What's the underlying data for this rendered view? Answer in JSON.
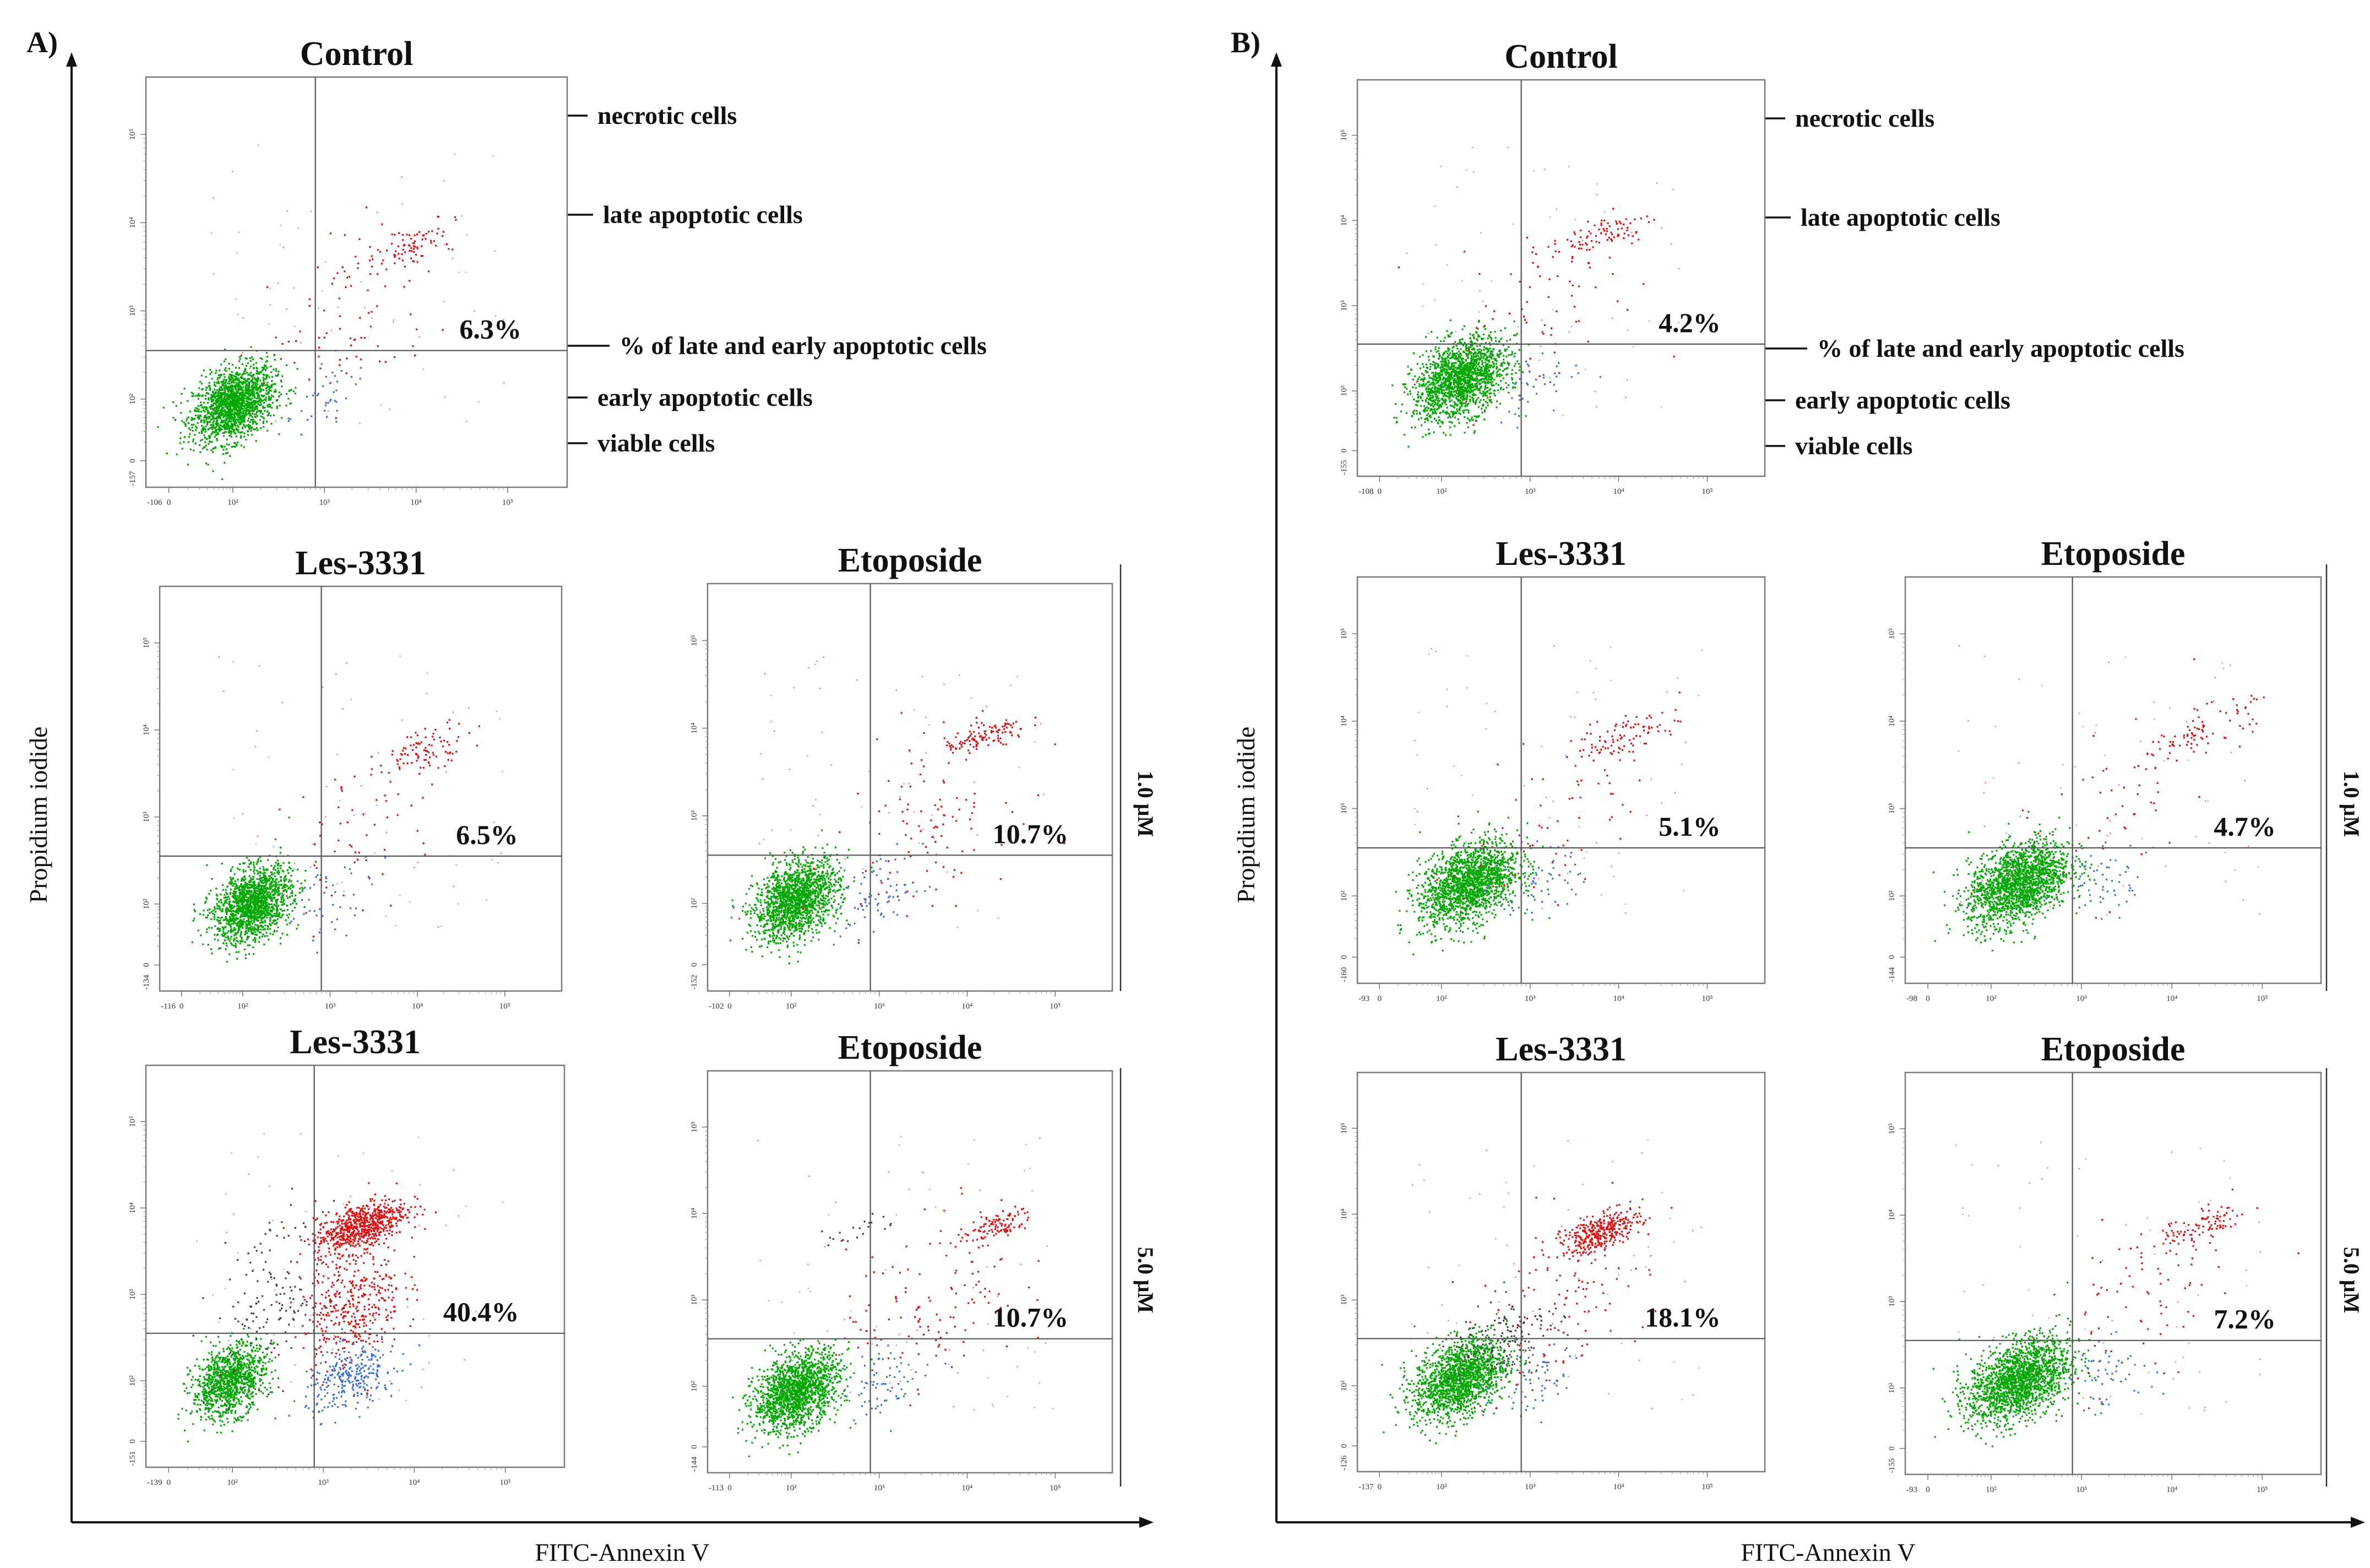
{
  "chart_data": {
    "type": "scatter",
    "xlabel": "FITC-Annexin V",
    "ylabel": "Propidium iodide",
    "colors": {
      "viable": "#00a800",
      "early_apoptotic": "#3b6fe0",
      "late_apoptotic": "#e01010",
      "necrotic": "#404040"
    },
    "panels": [
      {
        "id": "A",
        "letter": "A)",
        "xlabel": "FITC-Annexin V",
        "ylabel": "Propidium iodide",
        "concentrations": [
          "1.0 μM",
          "5.0 μM"
        ],
        "annotations": [
          "necrotic cells",
          "late apoptotic cells",
          "% of late and early apoptotic cells",
          "early apoptotic cells",
          "viable cells"
        ],
        "plots": [
          {
            "name": "control",
            "title": "Control",
            "percent": "6.3%",
            "xmin": "-106",
            "ymin": "-157",
            "xticks": [
              "0",
              "10²",
              "10³",
              "10⁴",
              "10⁵"
            ],
            "yticks": [
              "0",
              "10²",
              "10³",
              "10⁴",
              "10⁵"
            ],
            "clusters": [
              {
                "cls": "viable",
                "x": 1.7,
                "y": 1.65,
                "sx": 0.22,
                "sy": 0.2,
                "n": 1700
              },
              {
                "cls": "late_apoptotic",
                "x": 3.6,
                "y": 3.45,
                "sx": 0.25,
                "sy": 0.12,
                "n": 90
              },
              {
                "cls": "late_apoptotic",
                "x": 3.0,
                "y": 2.6,
                "sx": 0.45,
                "sy": 0.45,
                "n": 70
              },
              {
                "cls": "early_apoptotic",
                "x": 2.7,
                "y": 1.7,
                "sx": 0.25,
                "sy": 0.2,
                "n": 40
              }
            ]
          },
          {
            "name": "les-1",
            "title": "Les-3331",
            "percent": "6.5%",
            "xmin": "-116",
            "ymin": "-134",
            "xticks": [
              "0",
              "10²",
              "10³",
              "10⁴",
              "10⁵"
            ],
            "yticks": [
              "0",
              "10²",
              "10³",
              "10⁴",
              "10⁵"
            ],
            "clusters": [
              {
                "cls": "viable",
                "x": 1.8,
                "y": 1.7,
                "sx": 0.22,
                "sy": 0.2,
                "n": 1600
              },
              {
                "cls": "late_apoptotic",
                "x": 3.8,
                "y": 3.5,
                "sx": 0.25,
                "sy": 0.12,
                "n": 90
              },
              {
                "cls": "late_apoptotic",
                "x": 3.1,
                "y": 2.6,
                "sx": 0.45,
                "sy": 0.45,
                "n": 60
              },
              {
                "cls": "early_apoptotic",
                "x": 2.7,
                "y": 1.75,
                "sx": 0.25,
                "sy": 0.2,
                "n": 40
              }
            ]
          },
          {
            "name": "eto-1",
            "title": "Etoposide",
            "percent": "10.7%",
            "xmin": "-102",
            "ymin": "-152",
            "xticks": [
              "0",
              "10²",
              "10³",
              "10⁴",
              "10⁵"
            ],
            "yticks": [
              "0",
              "10²",
              "10³",
              "10⁴",
              "10⁵"
            ],
            "clusters": [
              {
                "cls": "viable",
                "x": 1.75,
                "y": 1.75,
                "sx": 0.24,
                "sy": 0.21,
                "n": 1600
              },
              {
                "cls": "late_apoptotic",
                "x": 3.9,
                "y": 3.6,
                "sx": 0.25,
                "sy": 0.08,
                "n": 110
              },
              {
                "cls": "late_apoptotic",
                "x": 3.2,
                "y": 2.7,
                "sx": 0.5,
                "sy": 0.5,
                "n": 110
              },
              {
                "cls": "early_apoptotic",
                "x": 2.7,
                "y": 1.8,
                "sx": 0.25,
                "sy": 0.22,
                "n": 70
              }
            ]
          },
          {
            "name": "les-5",
            "title": "Les-3331",
            "percent": "40.4%",
            "xmin": "-139",
            "ymin": "-151",
            "xticks": [
              "0",
              "10²",
              "10³",
              "10⁴",
              "10⁵"
            ],
            "yticks": [
              "0",
              "10²",
              "10³",
              "10⁴",
              "10⁵"
            ],
            "clusters": [
              {
                "cls": "viable",
                "x": 1.65,
                "y": 1.7,
                "sx": 0.2,
                "sy": 0.2,
                "n": 1100
              },
              {
                "cls": "late_apoptotic",
                "x": 3.1,
                "y": 3.5,
                "sx": 0.25,
                "sy": 0.13,
                "n": 700
              },
              {
                "cls": "late_apoptotic",
                "x": 3.0,
                "y": 2.6,
                "sx": 0.28,
                "sy": 0.35,
                "n": 400
              },
              {
                "cls": "early_apoptotic",
                "x": 3.0,
                "y": 1.75,
                "sx": 0.25,
                "sy": 0.18,
                "n": 280
              },
              {
                "cls": "necrotic",
                "x": 2.1,
                "y": 2.6,
                "sx": 0.3,
                "sy": 0.45,
                "n": 140
              }
            ]
          },
          {
            "name": "eto-5",
            "title": "Etoposide",
            "percent": "10.7%",
            "xmin": "-113",
            "ymin": "-144",
            "xticks": [
              "0",
              "10²",
              "10³",
              "10⁴",
              "10⁵"
            ],
            "yticks": [
              "0",
              "10²",
              "10³",
              "10⁴",
              "10⁵"
            ],
            "clusters": [
              {
                "cls": "viable",
                "x": 1.75,
                "y": 1.65,
                "sx": 0.24,
                "sy": 0.21,
                "n": 1600
              },
              {
                "cls": "late_apoptotic",
                "x": 4.0,
                "y": 3.55,
                "sx": 0.22,
                "sy": 0.08,
                "n": 110
              },
              {
                "cls": "late_apoptotic",
                "x": 3.3,
                "y": 2.7,
                "sx": 0.5,
                "sy": 0.5,
                "n": 120
              },
              {
                "cls": "early_apoptotic",
                "x": 2.8,
                "y": 1.8,
                "sx": 0.25,
                "sy": 0.2,
                "n": 70
              },
              {
                "cls": "necrotic",
                "x": 2.4,
                "y": 3.5,
                "sx": 0.25,
                "sy": 0.1,
                "n": 20
              }
            ]
          }
        ]
      },
      {
        "id": "B",
        "letter": "B)",
        "xlabel": "FITC-Annexin V",
        "ylabel": "Propidium iodide",
        "concentrations": [
          "1.0 μM",
          "5.0 μM"
        ],
        "annotations": [
          "necrotic cells",
          "late apoptotic cells",
          "% of late and early apoptotic cells",
          "early apoptotic cells",
          "viable cells"
        ],
        "plots": [
          {
            "name": "control",
            "title": "Control",
            "percent": "4.2%",
            "xmin": "-108",
            "ymin": "-155",
            "xticks": [
              "0",
              "10²",
              "10³",
              "10⁴",
              "10⁵"
            ],
            "yticks": [
              "0",
              "10²",
              "10³",
              "10⁴",
              "10⁵"
            ],
            "clusters": [
              {
                "cls": "viable",
                "x": 1.9,
                "y": 1.85,
                "sx": 0.26,
                "sy": 0.22,
                "n": 1700
              },
              {
                "cls": "late_apoptotic",
                "x": 3.5,
                "y": 3.55,
                "sx": 0.3,
                "sy": 0.12,
                "n": 90
              },
              {
                "cls": "late_apoptotic",
                "x": 2.9,
                "y": 2.7,
                "sx": 0.5,
                "sy": 0.5,
                "n": 60
              },
              {
                "cls": "early_apoptotic",
                "x": 2.8,
                "y": 1.8,
                "sx": 0.25,
                "sy": 0.2,
                "n": 40
              }
            ]
          },
          {
            "name": "les-1",
            "title": "Les-3331",
            "percent": "5.1%",
            "xmin": "-93",
            "ymin": "-160",
            "xticks": [
              "0",
              "10²",
              "10³",
              "10⁴",
              "10⁵"
            ],
            "yticks": [
              "0",
              "10²",
              "10³",
              "10⁴",
              "10⁵"
            ],
            "clusters": [
              {
                "cls": "viable",
                "x": 2.0,
                "y": 1.85,
                "sx": 0.28,
                "sy": 0.22,
                "n": 1700
              },
              {
                "cls": "late_apoptotic",
                "x": 3.8,
                "y": 3.55,
                "sx": 0.3,
                "sy": 0.12,
                "n": 90
              },
              {
                "cls": "late_apoptotic",
                "x": 3.0,
                "y": 2.7,
                "sx": 0.5,
                "sy": 0.5,
                "n": 60
              },
              {
                "cls": "early_apoptotic",
                "x": 2.8,
                "y": 1.85,
                "sx": 0.25,
                "sy": 0.2,
                "n": 50
              }
            ]
          },
          {
            "name": "eto-1",
            "title": "Etoposide",
            "percent": "4.7%",
            "xmin": "-98",
            "ymin": "-144",
            "xticks": [
              "0",
              "10²",
              "10³",
              "10⁴",
              "10⁵"
            ],
            "yticks": [
              "0",
              "10²",
              "10³",
              "10⁴",
              "10⁵"
            ],
            "clusters": [
              {
                "cls": "viable",
                "x": 2.0,
                "y": 1.85,
                "sx": 0.28,
                "sy": 0.22,
                "n": 1800
              },
              {
                "cls": "late_apoptotic",
                "x": 4.0,
                "y": 3.6,
                "sx": 0.3,
                "sy": 0.12,
                "n": 80
              },
              {
                "cls": "late_apoptotic",
                "x": 3.2,
                "y": 2.8,
                "sx": 0.5,
                "sy": 0.5,
                "n": 50
              },
              {
                "cls": "early_apoptotic",
                "x": 2.9,
                "y": 1.85,
                "sx": 0.25,
                "sy": 0.2,
                "n": 50
              }
            ]
          },
          {
            "name": "les-5",
            "title": "Les-3331",
            "percent": "18.1%",
            "xmin": "-137",
            "ymin": "-126",
            "xticks": [
              "0",
              "10²",
              "10³",
              "10⁴",
              "10⁵"
            ],
            "yticks": [
              "0",
              "10²",
              "10³",
              "10⁴",
              "10⁵"
            ],
            "clusters": [
              {
                "cls": "viable",
                "x": 1.9,
                "y": 1.8,
                "sx": 0.26,
                "sy": 0.22,
                "n": 1600
              },
              {
                "cls": "late_apoptotic",
                "x": 3.5,
                "y": 3.5,
                "sx": 0.22,
                "sy": 0.1,
                "n": 350
              },
              {
                "cls": "late_apoptotic",
                "x": 3.0,
                "y": 2.7,
                "sx": 0.5,
                "sy": 0.5,
                "n": 120
              },
              {
                "cls": "early_apoptotic",
                "x": 2.8,
                "y": 1.85,
                "sx": 0.25,
                "sy": 0.2,
                "n": 60
              },
              {
                "cls": "necrotic",
                "x": 2.3,
                "y": 2.25,
                "sx": 0.3,
                "sy": 0.2,
                "n": 130
              }
            ]
          },
          {
            "name": "eto-5",
            "title": "Etoposide",
            "percent": "7.2%",
            "xmin": "-93",
            "ymin": "-155",
            "xticks": [
              "0",
              "10²",
              "10³",
              "10⁴",
              "10⁵"
            ],
            "yticks": [
              "0",
              "10²",
              "10³",
              "10⁴",
              "10⁵"
            ],
            "clusters": [
              {
                "cls": "viable",
                "x": 2.0,
                "y": 1.8,
                "sx": 0.28,
                "sy": 0.22,
                "n": 1800
              },
              {
                "cls": "late_apoptotic",
                "x": 4.0,
                "y": 3.55,
                "sx": 0.3,
                "sy": 0.1,
                "n": 100
              },
              {
                "cls": "late_apoptotic",
                "x": 3.3,
                "y": 2.6,
                "sx": 0.5,
                "sy": 0.5,
                "n": 70
              },
              {
                "cls": "early_apoptotic",
                "x": 3.0,
                "y": 1.85,
                "sx": 0.25,
                "sy": 0.2,
                "n": 50
              }
            ]
          }
        ]
      }
    ]
  }
}
